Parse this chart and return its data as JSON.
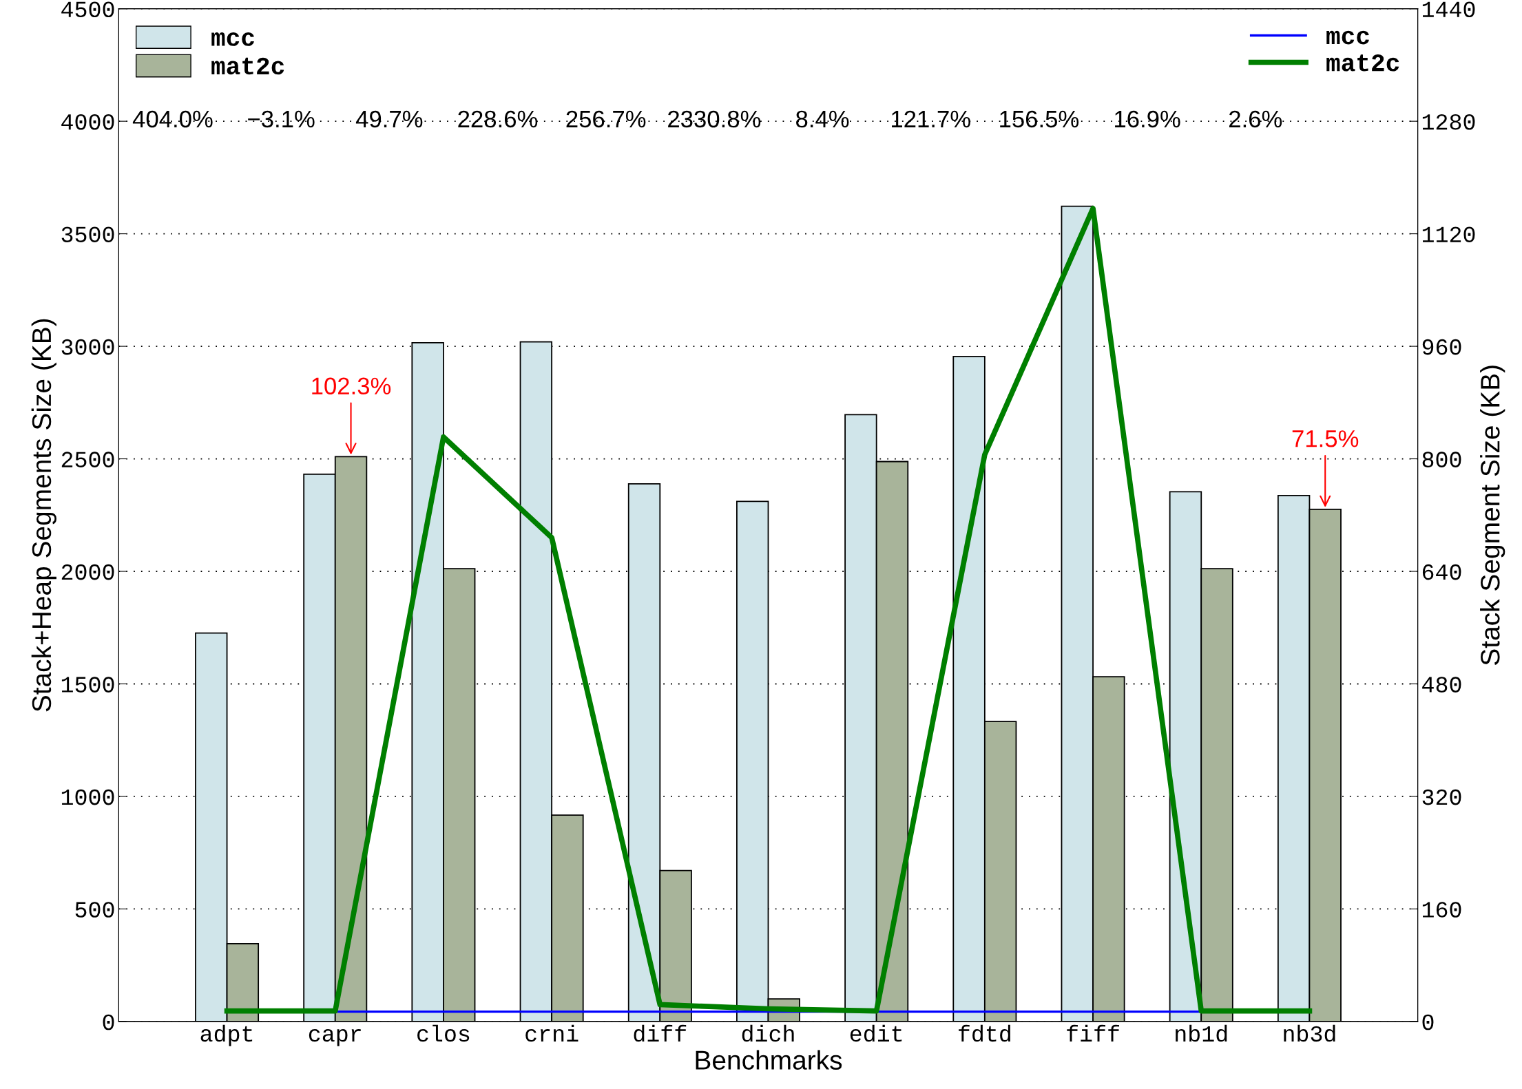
{
  "chart_data": {
    "type": "bar",
    "xlabel": "Benchmarks",
    "ylabel": "Stack+Heap Segments Size (KB)",
    "y2label": "Stack Segment Size (KB)",
    "categories": [
      "adpt",
      "capr",
      "clos",
      "crni",
      "diff",
      "dich",
      "edit",
      "fdtd",
      "fiff",
      "nb1d",
      "nb3d"
    ],
    "series": [
      {
        "name": "mcc",
        "color": "#d0e5ea",
        "values": [
          1726,
          2432,
          3016,
          3020,
          2389,
          2311,
          2696,
          2955,
          3622,
          2354,
          2337
        ]
      },
      {
        "name": "mat2c",
        "color": "#a8b49a",
        "values": [
          346,
          2510,
          2012,
          917,
          671,
          100,
          2488,
          1333,
          1532,
          2012,
          2276
        ]
      },
      {
        "name": "mcc",
        "type": "line",
        "axis": "y2",
        "color": "#0000ff",
        "values": [
          null,
          14,
          14,
          14,
          14,
          14,
          14,
          14,
          14,
          14,
          null
        ]
      },
      {
        "name": "mat2c",
        "type": "line",
        "axis": "y2",
        "color": "#007f00",
        "values": [
          15,
          15,
          831,
          688,
          24,
          18,
          15,
          806,
          1156,
          15,
          15
        ]
      }
    ],
    "ylim": [
      0,
      4500
    ],
    "yticks": [
      0,
      500,
      1000,
      1500,
      2000,
      2500,
      3000,
      3500,
      4000,
      4500
    ],
    "y2lim": [
      0,
      1440
    ],
    "y2ticks": [
      0,
      160,
      320,
      480,
      640,
      800,
      960,
      1120,
      1280,
      1440
    ],
    "grid": "y",
    "legend": "top left",
    "line_style": "solid",
    "marker": "none",
    "annotations": [
      "404.0%",
      "−3.1%",
      "49.7%",
      "228.6%",
      "256.7%",
      "2330.8%",
      "8.4%",
      "121.7%",
      "156.5%",
      "16.9%",
      "2.6%",
      {
        "text": "102.3%",
        "x": "capr",
        "y": 2510
      },
      {
        "text": "71.5%",
        "x": "nb3d",
        "y": 2276
      }
    ]
  }
}
